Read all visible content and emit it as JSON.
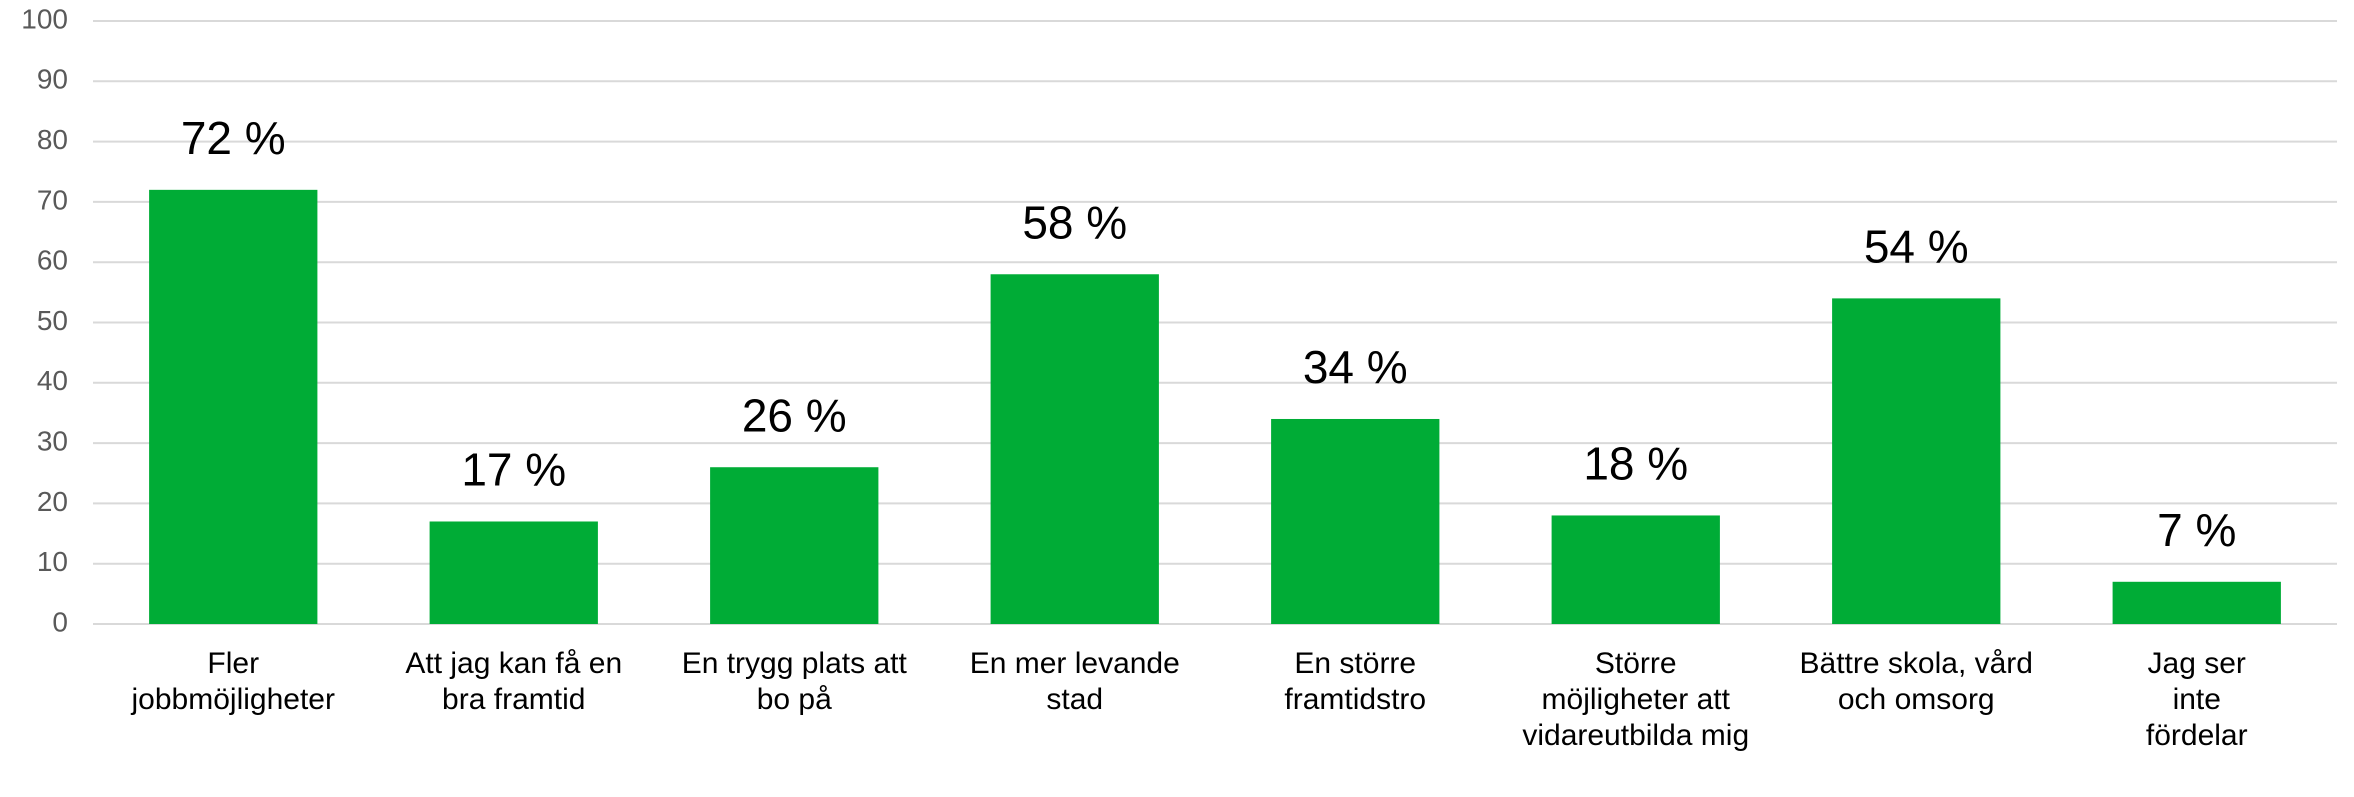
{
  "chart_data": {
    "type": "bar",
    "categories": [
      "Fler jobbmöjligheter",
      "Att jag kan få en bra framtid",
      "En trygg plats att bo på",
      "En mer levande stad",
      "En större framtidstro",
      "Större möjligheter att vidareutbilda mig",
      "Bättre skola, vård och omsorg",
      "Jag ser inte fördelar"
    ],
    "values": [
      72,
      17,
      26,
      58,
      34,
      18,
      54,
      7
    ],
    "value_labels": [
      "72 %",
      "17 %",
      "26 %",
      "58 %",
      "34 %",
      "18 %",
      "54 %",
      "7 %"
    ],
    "color": "#00ac36",
    "ylim": [
      0,
      100
    ],
    "yticks": [
      0,
      10,
      20,
      30,
      40,
      50,
      60,
      70,
      80,
      90,
      100
    ],
    "grid": true
  }
}
